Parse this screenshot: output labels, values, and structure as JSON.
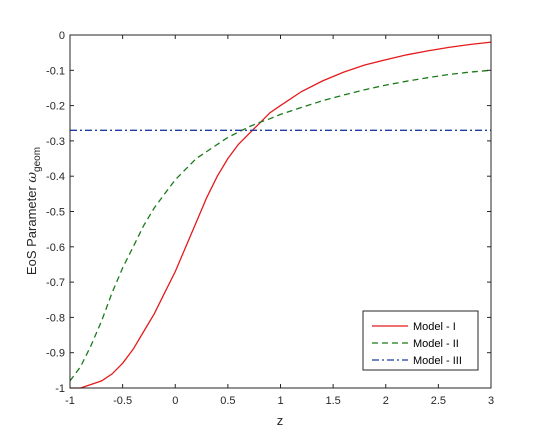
{
  "chart_data": {
    "type": "line",
    "xlabel": "z",
    "ylabel": {
      "main": "EoS Parameter ",
      "symbol": "ω",
      "subscript": "geom"
    },
    "xlim": [
      -1,
      3
    ],
    "ylim": [
      -1,
      0
    ],
    "xticks": [
      {
        "value": -1,
        "label": "-1"
      },
      {
        "value": -0.5,
        "label": "-0.5"
      },
      {
        "value": 0,
        "label": "0"
      },
      {
        "value": 0.5,
        "label": "0.5"
      },
      {
        "value": 1,
        "label": "1"
      },
      {
        "value": 1.5,
        "label": "1.5"
      },
      {
        "value": 2,
        "label": "2"
      },
      {
        "value": 2.5,
        "label": "2.5"
      },
      {
        "value": 3,
        "label": "3"
      }
    ],
    "yticks": [
      {
        "value": 0,
        "label": "0"
      },
      {
        "value": -0.1,
        "label": "-0.1"
      },
      {
        "value": -0.2,
        "label": "-0.2"
      },
      {
        "value": -0.3,
        "label": "-0.3"
      },
      {
        "value": -0.4,
        "label": "-0.4"
      },
      {
        "value": -0.5,
        "label": "-0.5"
      },
      {
        "value": -0.6,
        "label": "-0.6"
      },
      {
        "value": -0.7,
        "label": "-0.7"
      },
      {
        "value": -0.8,
        "label": "-0.8"
      },
      {
        "value": -0.9,
        "label": "-0.9"
      },
      {
        "value": -1,
        "label": "-1"
      }
    ],
    "grid": false,
    "legend_position": "bottom-right",
    "series": [
      {
        "name": "Model - I",
        "color": "#e41a1c",
        "style": "solid",
        "x": [
          -1,
          -0.9,
          -0.8,
          -0.7,
          -0.6,
          -0.5,
          -0.4,
          -0.3,
          -0.2,
          -0.1,
          0,
          0.1,
          0.2,
          0.3,
          0.4,
          0.5,
          0.6,
          0.7,
          0.8,
          0.9,
          1,
          1.2,
          1.4,
          1.6,
          1.8,
          2,
          2.2,
          2.4,
          2.6,
          2.8,
          3
        ],
        "y": [
          -1.0,
          -1.0,
          -0.99,
          -0.98,
          -0.96,
          -0.93,
          -0.89,
          -0.84,
          -0.79,
          -0.73,
          -0.67,
          -0.6,
          -0.53,
          -0.46,
          -0.4,
          -0.35,
          -0.31,
          -0.28,
          -0.25,
          -0.22,
          -0.2,
          -0.16,
          -0.13,
          -0.105,
          -0.085,
          -0.07,
          -0.056,
          -0.045,
          -0.035,
          -0.027,
          -0.02
        ]
      },
      {
        "name": "Model - II",
        "color": "#1a7a1a",
        "style": "dashed",
        "x": [
          -1,
          -0.9,
          -0.8,
          -0.7,
          -0.6,
          -0.5,
          -0.4,
          -0.3,
          -0.2,
          -0.1,
          0,
          0.1,
          0.2,
          0.3,
          0.4,
          0.5,
          0.6,
          0.7,
          0.8,
          0.9,
          1,
          1.2,
          1.4,
          1.6,
          1.8,
          2,
          2.2,
          2.4,
          2.6,
          2.8,
          3
        ],
        "y": [
          -0.98,
          -0.94,
          -0.88,
          -0.81,
          -0.73,
          -0.66,
          -0.6,
          -0.54,
          -0.49,
          -0.45,
          -0.41,
          -0.38,
          -0.35,
          -0.33,
          -0.31,
          -0.29,
          -0.275,
          -0.26,
          -0.248,
          -0.237,
          -0.225,
          -0.205,
          -0.186,
          -0.17,
          -0.155,
          -0.142,
          -0.131,
          -0.121,
          -0.112,
          -0.105,
          -0.1
        ]
      },
      {
        "name": "Model - III",
        "color": "#1f3ca6",
        "style": "dashdot",
        "x": [
          -1,
          3
        ],
        "y": [
          -0.27,
          -0.27
        ]
      }
    ]
  }
}
